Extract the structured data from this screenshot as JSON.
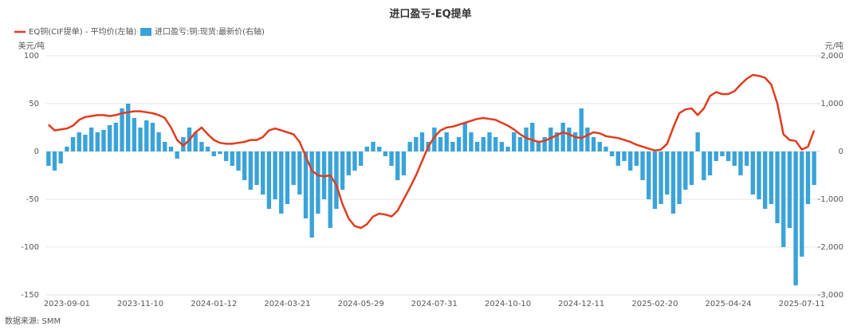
{
  "chart_data": {
    "type": "bar-line",
    "title": "进口盈亏-EQ提单",
    "source": "数据来源: SMM",
    "y_label": "美元/吨",
    "y2_label": "元/吨",
    "categories": [
      null,
      null,
      null,
      "2023-09-01",
      null,
      null,
      null,
      null,
      null,
      null,
      null,
      null,
      null,
      null,
      null,
      "2023-11-10",
      null,
      null,
      null,
      null,
      null,
      null,
      null,
      null,
      null,
      null,
      null,
      "2024-01-12",
      null,
      null,
      null,
      null,
      null,
      null,
      null,
      null,
      null,
      null,
      null,
      "2024-03-21",
      null,
      null,
      null,
      null,
      null,
      null,
      null,
      null,
      null,
      null,
      null,
      "2024-05-29",
      null,
      null,
      null,
      null,
      null,
      null,
      null,
      null,
      null,
      null,
      null,
      "2024-07-31",
      null,
      null,
      null,
      null,
      null,
      null,
      null,
      null,
      null,
      null,
      null,
      "2024-10-10",
      null,
      null,
      null,
      null,
      null,
      null,
      null,
      null,
      null,
      null,
      null,
      "2024-12-11",
      null,
      null,
      null,
      null,
      null,
      null,
      null,
      null,
      null,
      null,
      null,
      "2025-02-20",
      null,
      null,
      null,
      null,
      null,
      null,
      null,
      null,
      null,
      null,
      null,
      "2025-04-24",
      null,
      null,
      null,
      null,
      null,
      null,
      null,
      null,
      null,
      null,
      null,
      "2025-07-11",
      null,
      null
    ],
    "series": [
      {
        "name": "EQ铜(CIF提单) - 平均价(左轴)",
        "type": "line",
        "color": "#e03c1e",
        "values": [
          28,
          22,
          23,
          24,
          27,
          33,
          36,
          37,
          38,
          38,
          37,
          38,
          40,
          41,
          42,
          42,
          41,
          40,
          38,
          35,
          25,
          12,
          6,
          12,
          20,
          25,
          18,
          12,
          9,
          8,
          8,
          9,
          10,
          12,
          12,
          15,
          22,
          24,
          22,
          20,
          18,
          10,
          -5,
          -20,
          -25,
          -26,
          -25,
          -35,
          -55,
          -70,
          -78,
          -80,
          -76,
          -68,
          -65,
          -66,
          -68,
          -62,
          -50,
          -38,
          -25,
          -10,
          5,
          15,
          22,
          25,
          26,
          28,
          30,
          32,
          34,
          35,
          34,
          33,
          30,
          27,
          23,
          18,
          14,
          12,
          10,
          11,
          14,
          17,
          20,
          18,
          15,
          14,
          17,
          20,
          19,
          16,
          15,
          14,
          12,
          10,
          7,
          5,
          3,
          1,
          2,
          8,
          25,
          40,
          44,
          45,
          38,
          45,
          58,
          62,
          60,
          60,
          63,
          70,
          76,
          80,
          79,
          77,
          70,
          50,
          18,
          12,
          11,
          2,
          5,
          22
        ]
      },
      {
        "name": "进口盈亏:铜:现货:最新价(右轴)",
        "type": "bar",
        "axis": "y2",
        "color": "#3aa3d8",
        "values": [
          -300,
          -400,
          -250,
          100,
          300,
          400,
          350,
          500,
          400,
          450,
          550,
          600,
          900,
          1000,
          700,
          500,
          650,
          600,
          400,
          200,
          100,
          -150,
          300,
          500,
          400,
          200,
          100,
          -100,
          -50,
          -200,
          -300,
          -400,
          -600,
          -800,
          -700,
          -900,
          -1200,
          -1000,
          -1300,
          -1100,
          -700,
          -900,
          -1400,
          -1800,
          -1300,
          -1000,
          -1600,
          -1200,
          -800,
          -500,
          -400,
          -300,
          100,
          200,
          100,
          -100,
          -300,
          -600,
          -500,
          200,
          300,
          400,
          200,
          500,
          300,
          400,
          200,
          300,
          600,
          400,
          200,
          300,
          400,
          300,
          200,
          100,
          400,
          300,
          500,
          600,
          200,
          300,
          500,
          400,
          600,
          500,
          400,
          900,
          500,
          300,
          200,
          100,
          -100,
          -300,
          -200,
          -400,
          -300,
          -600,
          -1000,
          -1200,
          -1100,
          -900,
          -1300,
          -1100,
          -800,
          -700,
          400,
          -600,
          -500,
          -200,
          -100,
          -200,
          -300,
          -500,
          -300,
          -900,
          -1000,
          -1200,
          -1100,
          -1500,
          -2000,
          -1600,
          -2800,
          -2200,
          -1100,
          -700
        ]
      }
    ],
    "ylim": [
      -150,
      100
    ],
    "yticks": [
      -150,
      -100,
      -50,
      0,
      50,
      100
    ],
    "y2lim": [
      -3000,
      2000
    ],
    "y2ticks": [
      {
        "value": -3000,
        "label": "-3,000"
      },
      {
        "value": -2000,
        "label": "-2,000"
      },
      {
        "value": -1000,
        "label": "-1,000"
      },
      0,
      {
        "value": 1000,
        "label": "1,000"
      },
      {
        "value": 2000,
        "label": "2,000"
      }
    ],
    "grid": true
  }
}
